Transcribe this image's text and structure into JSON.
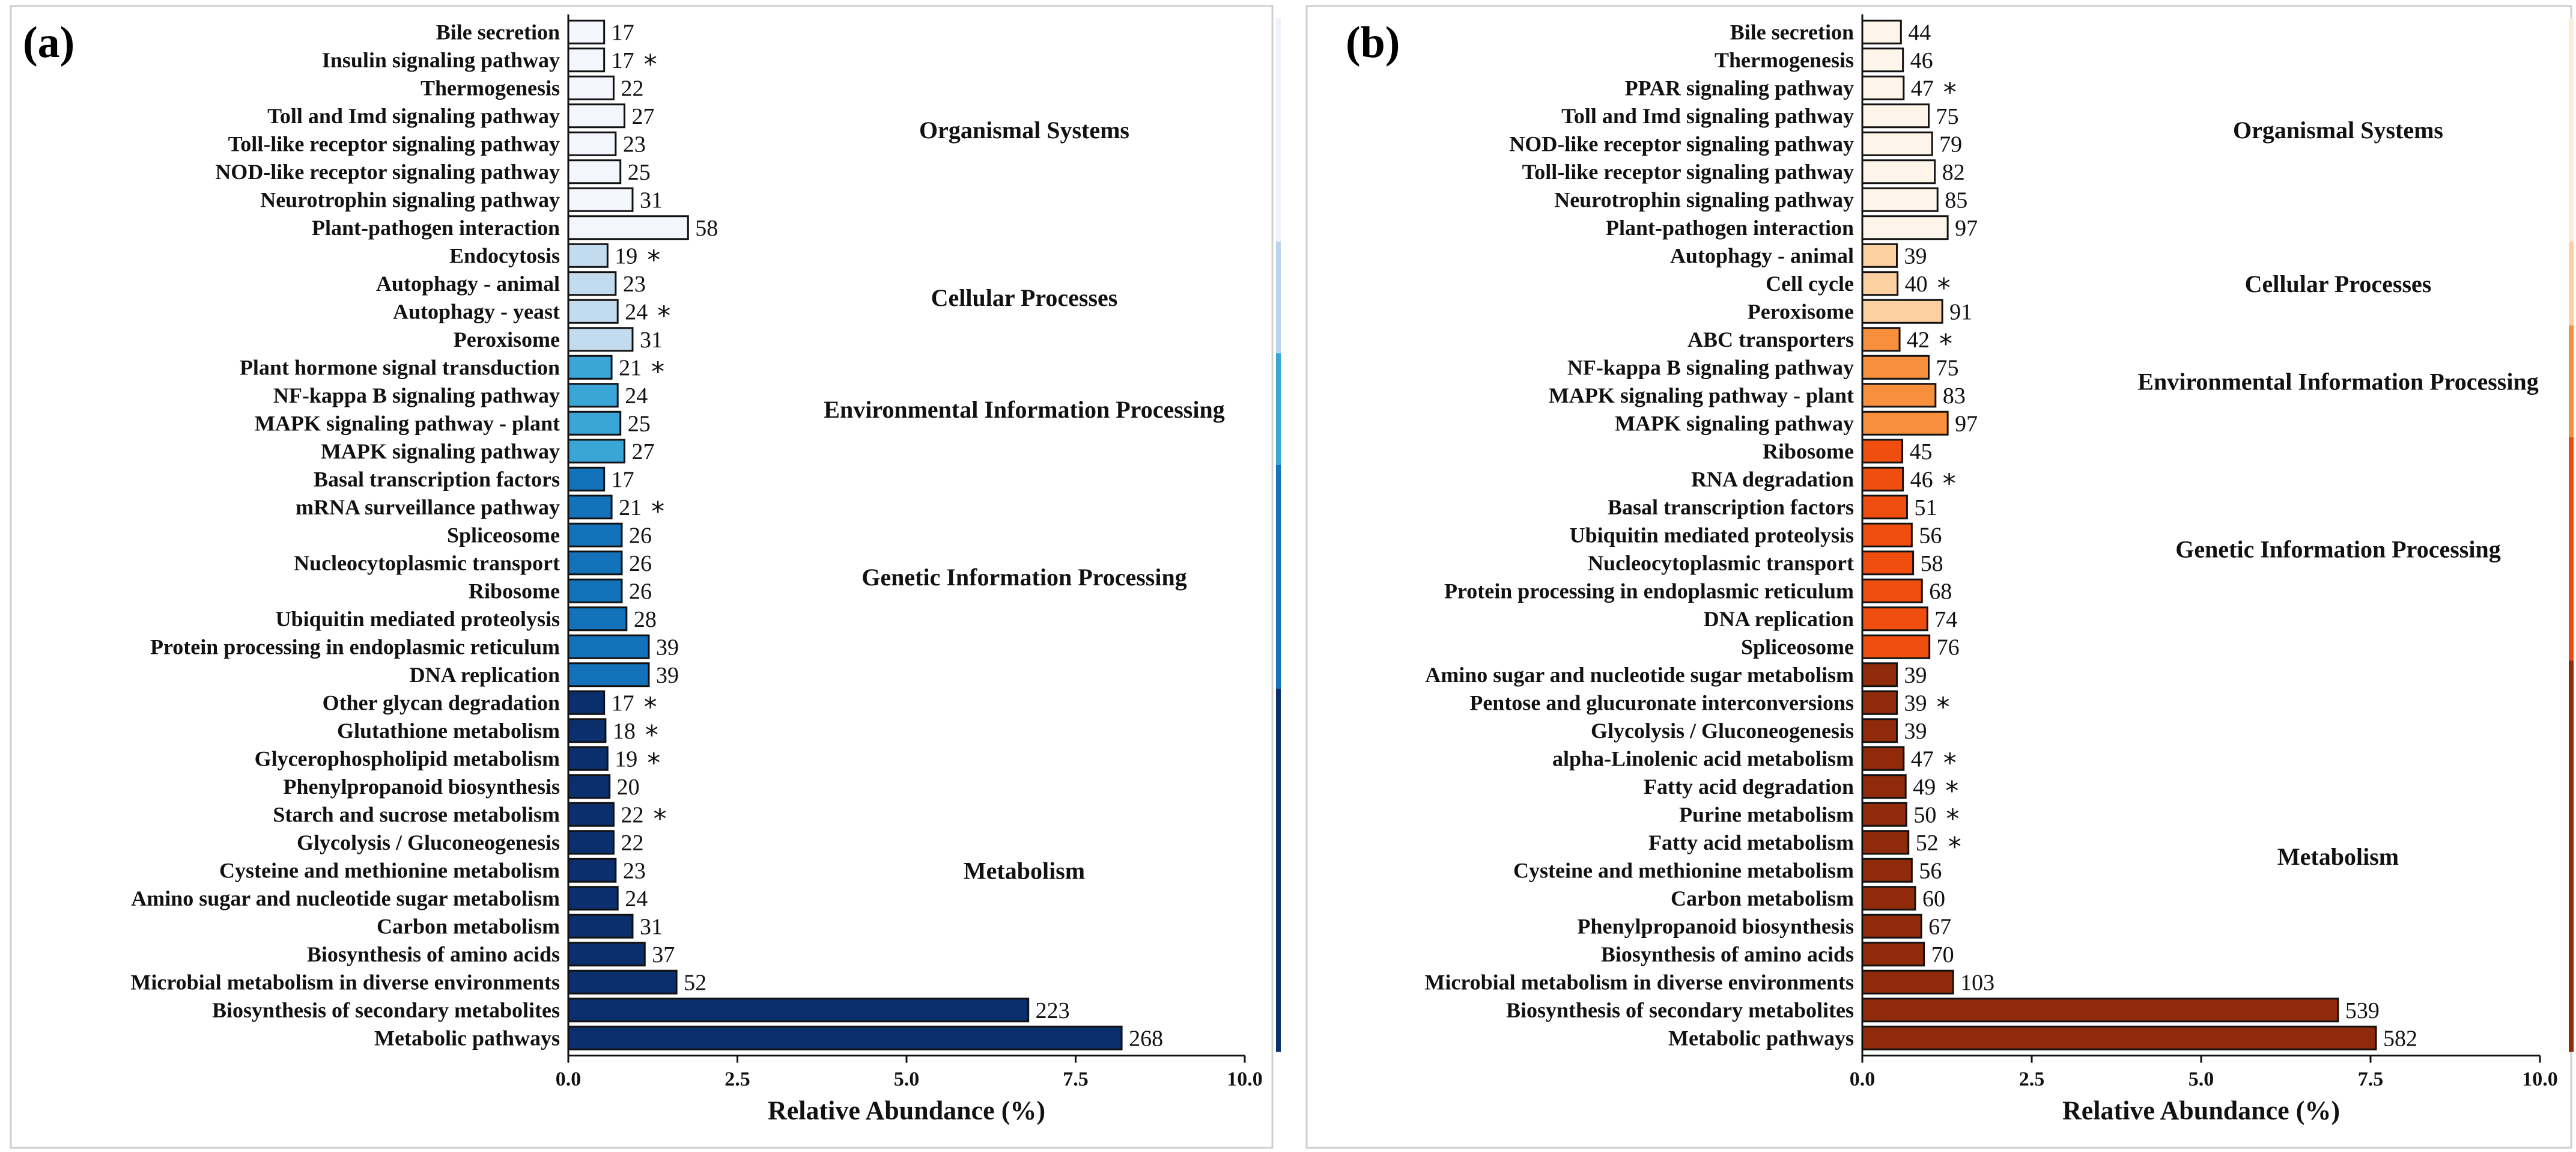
{
  "chart_data": [
    {
      "type": "bar",
      "orientation": "horizontal",
      "panel_label": "(a)",
      "xlabel": "Relative Abundance (%)",
      "xlim": [
        0,
        10
      ],
      "xticks": [
        "0.0",
        "2.5",
        "5.0",
        "7.5",
        "10.0"
      ],
      "categories": [
        "Bile secretion",
        "Insulin signaling pathway",
        "Thermogenesis",
        "Toll and Imd signaling pathway",
        "Toll-like receptor signaling pathway",
        "NOD-like receptor signaling pathway",
        "Neurotrophin signaling pathway",
        "Plant-pathogen interaction",
        "Endocytosis",
        "Autophagy - animal",
        "Autophagy - yeast",
        "Peroxisome",
        "Plant hormone signal transduction",
        "NF-kappa B signaling pathway",
        "MAPK signaling pathway - plant",
        "MAPK signaling pathway",
        "Basal transcription factors",
        "mRNA surveillance pathway",
        "Spliceosome",
        "Nucleocytoplasmic transport",
        "Ribosome",
        "Ubiquitin mediated proteolysis",
        "Protein processing in endoplasmic reticulum",
        "DNA replication",
        "Other glycan degradation",
        "Glutathione metabolism",
        "Glycerophospholipid metabolism",
        "Phenylpropanoid biosynthesis",
        "Starch and sucrose metabolism",
        "Glycolysis / Gluconeogenesis",
        "Cysteine and methionine metabolism",
        "Amino sugar and nucleotide sugar metabolism",
        "Carbon metabolism",
        "Biosynthesis of amino acids",
        "Microbial metabolism in diverse environments",
        "Biosynthesis of secondary metabolites",
        "Metabolic pathways"
      ],
      "values": [
        0.53,
        0.53,
        0.67,
        0.83,
        0.7,
        0.77,
        0.95,
        1.77,
        0.58,
        0.7,
        0.73,
        0.95,
        0.64,
        0.73,
        0.77,
        0.83,
        0.53,
        0.64,
        0.79,
        0.79,
        0.79,
        0.86,
        1.19,
        1.19,
        0.53,
        0.55,
        0.58,
        0.61,
        0.67,
        0.67,
        0.7,
        0.73,
        0.95,
        1.13,
        1.6,
        6.8,
        8.18
      ],
      "counts": [
        "17",
        "17",
        "22",
        "27",
        "23",
        "25",
        "31",
        "58",
        "19",
        "23",
        "24",
        "31",
        "21",
        "24",
        "25",
        "27",
        "17",
        "21",
        "26",
        "26",
        "26",
        "28",
        "39",
        "39",
        "17",
        "18",
        "19",
        "20",
        "22",
        "22",
        "23",
        "24",
        "31",
        "37",
        "52",
        "223",
        "268"
      ],
      "significant": [
        false,
        true,
        false,
        false,
        false,
        false,
        false,
        false,
        true,
        false,
        true,
        false,
        true,
        false,
        false,
        false,
        false,
        true,
        false,
        false,
        false,
        false,
        false,
        false,
        true,
        true,
        true,
        false,
        true,
        false,
        false,
        false,
        false,
        false,
        false,
        false,
        false
      ],
      "star_symbol": "*",
      "colors": [
        "#f3f6fc",
        "#f3f6fc",
        "#f3f6fc",
        "#f3f6fc",
        "#f3f6fc",
        "#f3f6fc",
        "#f3f6fc",
        "#f3f6fc",
        "#c3dbef",
        "#c3dbef",
        "#c3dbef",
        "#c3dbef",
        "#3aa6d8",
        "#3aa6d8",
        "#3aa6d8",
        "#3aa6d8",
        "#1372ba",
        "#1372ba",
        "#1372ba",
        "#1372ba",
        "#1372ba",
        "#1372ba",
        "#1372ba",
        "#1372ba",
        "#0b2f6d",
        "#0b2f6d",
        "#0b2f6d",
        "#0b2f6d",
        "#0b2f6d",
        "#0b2f6d",
        "#0b2f6d",
        "#0b2f6d",
        "#0b2f6d",
        "#0b2f6d",
        "#0b2f6d",
        "#0b2f6d",
        "#0b2f6d"
      ],
      "groups": [
        {
          "name": "Organismal Systems",
          "start": 0,
          "end": 7,
          "color": "#eef2fb"
        },
        {
          "name": "Cellular Processes",
          "start": 8,
          "end": 11,
          "color": "#bcd5ee"
        },
        {
          "name": "Environmental Information Processing",
          "start": 12,
          "end": 15,
          "color": "#3aa6d8"
        },
        {
          "name": "Genetic Information Processing",
          "start": 16,
          "end": 23,
          "color": "#1372ba"
        },
        {
          "name": "Metabolism",
          "start": 24,
          "end": 36,
          "color": "#0b2f6d"
        }
      ]
    },
    {
      "type": "bar",
      "orientation": "horizontal",
      "panel_label": "(b)",
      "xlabel": "Relative Abundance (%)",
      "xlim": [
        0,
        10
      ],
      "xticks": [
        "0.0",
        "2.5",
        "5.0",
        "7.5",
        "10.0"
      ],
      "categories": [
        "Bile secretion",
        "Thermogenesis",
        "PPAR signaling pathway",
        "Toll and Imd signaling pathway",
        "NOD-like receptor signaling pathway",
        "Toll-like receptor signaling pathway",
        "Neurotrophin signaling pathway",
        "Plant-pathogen interaction",
        "Autophagy - animal",
        "Cell cycle",
        "Peroxisome",
        "ABC transporters",
        "NF-kappa B signaling pathway",
        "MAPK signaling pathway - plant",
        "MAPK signaling pathway",
        "Ribosome",
        "RNA degradation",
        "Basal transcription factors",
        "Ubiquitin mediated proteolysis",
        "Nucleocytoplasmic transport",
        "Protein processing in endoplasmic reticulum",
        "DNA replication",
        "Spliceosome",
        "Amino sugar and nucleotide sugar metabolism",
        "Pentose and glucuronate interconversions",
        "Glycolysis / Gluconeogenesis",
        "alpha-Linolenic acid metabolism",
        "Fatty acid degradation",
        "Purine metabolism",
        "Fatty acid metabolism",
        "Cysteine and methionine metabolism",
        "Carbon metabolism",
        "Phenylpropanoid biosynthesis",
        "Biosynthesis of amino acids",
        "Microbial metabolism in diverse environments",
        "Biosynthesis of secondary metabolites",
        "Metabolic pathways"
      ],
      "values": [
        0.57,
        0.6,
        0.61,
        0.98,
        1.03,
        1.07,
        1.11,
        1.26,
        0.51,
        0.52,
        1.18,
        0.55,
        0.98,
        1.08,
        1.26,
        0.59,
        0.6,
        0.66,
        0.73,
        0.75,
        0.88,
        0.96,
        0.99,
        0.51,
        0.51,
        0.51,
        0.61,
        0.64,
        0.65,
        0.68,
        0.73,
        0.78,
        0.87,
        0.91,
        1.34,
        7.02,
        7.58
      ],
      "counts": [
        "44",
        "46",
        "47",
        "75",
        "79",
        "82",
        "85",
        "97",
        "39",
        "40",
        "91",
        "42",
        "75",
        "83",
        "97",
        "45",
        "46",
        "51",
        "56",
        "58",
        "68",
        "74",
        "76",
        "39",
        "39",
        "39",
        "47",
        "49",
        "50",
        "52",
        "56",
        "60",
        "67",
        "70",
        "103",
        "539",
        "582"
      ],
      "significant": [
        false,
        false,
        true,
        false,
        false,
        false,
        false,
        false,
        false,
        true,
        false,
        true,
        false,
        false,
        false,
        false,
        true,
        false,
        false,
        false,
        false,
        false,
        false,
        false,
        true,
        false,
        true,
        true,
        true,
        true,
        false,
        false,
        false,
        false,
        false,
        false,
        false
      ],
      "star_symbol": "*",
      "colors": [
        "#fef5ea",
        "#fef5ea",
        "#fef5ea",
        "#fef5ea",
        "#fef5ea",
        "#fef5ea",
        "#fef5ea",
        "#fef5ea",
        "#fdd0a2",
        "#fdd0a2",
        "#fdd0a2",
        "#f88f3c",
        "#f88f3c",
        "#f88f3c",
        "#f88f3c",
        "#f04e0f",
        "#f04e0f",
        "#f04e0f",
        "#f04e0f",
        "#f04e0f",
        "#f04e0f",
        "#f04e0f",
        "#f04e0f",
        "#8f2a0a",
        "#8f2a0a",
        "#8f2a0a",
        "#8f2a0a",
        "#8f2a0a",
        "#8f2a0a",
        "#8f2a0a",
        "#8f2a0a",
        "#8f2a0a",
        "#8f2a0a",
        "#8f2a0a",
        "#8f2a0a",
        "#8f2a0a",
        "#8f2a0a"
      ],
      "groups": [
        {
          "name": "Organismal Systems",
          "start": 0,
          "end": 7,
          "color": "#fdecd8"
        },
        {
          "name": "Cellular Processes",
          "start": 8,
          "end": 10,
          "color": "#fdcfa0"
        },
        {
          "name": "Environmental Information Processing",
          "start": 11,
          "end": 14,
          "color": "#f88f3c"
        },
        {
          "name": "Genetic Information Processing",
          "start": 15,
          "end": 22,
          "color": "#ee4a10"
        },
        {
          "name": "Metabolism",
          "start": 23,
          "end": 36,
          "color": "#8f2a0a"
        }
      ]
    }
  ]
}
